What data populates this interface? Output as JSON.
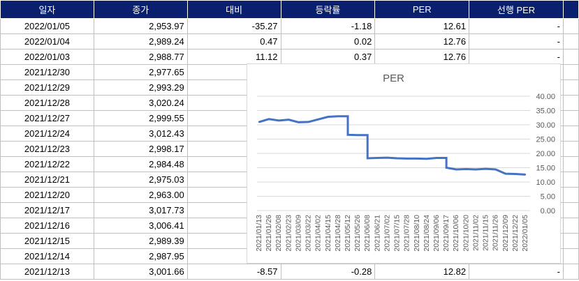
{
  "table": {
    "headers": [
      "일자",
      "종가",
      "대비",
      "등락률",
      "PER",
      "선행 PER"
    ],
    "rows": [
      [
        "2022/01/05",
        "2,953.97",
        "-35.27",
        "-1.18",
        "12.61",
        "-"
      ],
      [
        "2022/01/04",
        "2,989.24",
        "0.47",
        "0.02",
        "12.76",
        "-"
      ],
      [
        "2022/01/03",
        "2,988.77",
        "11.12",
        "0.37",
        "12.76",
        "-"
      ],
      [
        "2021/12/30",
        "2,977.65",
        "",
        "",
        "",
        ""
      ],
      [
        "2021/12/29",
        "2,993.29",
        "",
        "",
        "",
        ""
      ],
      [
        "2021/12/28",
        "3,020.24",
        "",
        "",
        "",
        ""
      ],
      [
        "2021/12/27",
        "2,999.55",
        "",
        "",
        "",
        ""
      ],
      [
        "2021/12/24",
        "3,012.43",
        "",
        "",
        "",
        ""
      ],
      [
        "2021/12/23",
        "2,998.17",
        "",
        "",
        "",
        ""
      ],
      [
        "2021/12/22",
        "2,984.48",
        "",
        "",
        "",
        ""
      ],
      [
        "2021/12/21",
        "2,975.03",
        "",
        "",
        "",
        ""
      ],
      [
        "2021/12/20",
        "2,963.00",
        "",
        "",
        "",
        ""
      ],
      [
        "2021/12/17",
        "3,017.73",
        "",
        "",
        "",
        ""
      ],
      [
        "2021/12/16",
        "3,006.41",
        "",
        "",
        "",
        ""
      ],
      [
        "2021/12/15",
        "2,989.39",
        "",
        "",
        "",
        ""
      ],
      [
        "2021/12/14",
        "2,987.95",
        "",
        "",
        "",
        ""
      ],
      [
        "2021/12/13",
        "3,001.66",
        "-8.57",
        "-0.28",
        "12.82",
        "-"
      ]
    ]
  },
  "chart_data": {
    "type": "line",
    "title": "PER",
    "ylim": [
      0,
      40
    ],
    "yticks": [
      "0.00",
      "5.00",
      "10.00",
      "15.00",
      "20.00",
      "25.00",
      "30.00",
      "35.00",
      "40.00"
    ],
    "grid": true,
    "line_color": "#4472c4",
    "categories": [
      "2021/01/13",
      "2021/01/26",
      "2021/02/08",
      "2021/02/23",
      "2021/03/09",
      "2021/03/22",
      "2021/04/02",
      "2021/04/15",
      "2021/04/28",
      "2021/05/12",
      "2021/05/26",
      "2021/06/08",
      "2021/06/21",
      "2021/07/02",
      "2021/07/15",
      "2021/07/28",
      "2021/08/10",
      "2021/08/24",
      "2021/09/06",
      "2021/09/17",
      "2021/10/06",
      "2021/10/20",
      "2021/11/02",
      "2021/11/15",
      "2021/11/26",
      "2021/12/09",
      "2021/12/22",
      "2022/01/05"
    ],
    "values": [
      31.0,
      32.0,
      31.5,
      31.8,
      30.9,
      31.0,
      31.9,
      32.8,
      33.0,
      26.5,
      26.4,
      18.3,
      18.4,
      18.5,
      18.3,
      18.2,
      18.2,
      18.1,
      18.4,
      15.0,
      14.4,
      14.5,
      14.4,
      14.6,
      14.4,
      12.9,
      12.8,
      12.6
    ]
  }
}
